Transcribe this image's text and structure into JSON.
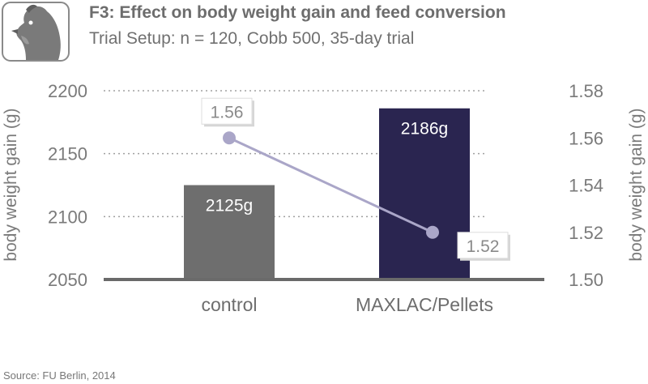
{
  "header": {
    "title": "F3:  Effect on body weight gain and feed conversion",
    "subtitle": "Trial Setup: n = 120, Cobb 500, 35-day trial",
    "logo_icon": "chicken-head-icon"
  },
  "footer": {
    "source": "Source: FU Berlin, 2014"
  },
  "colors": {
    "control_bar": "#6e6e6e",
    "maxlac_bar": "#2a2550",
    "line": "#aaa6c8",
    "axis": "#6a6a6a",
    "text": "#777777"
  },
  "chart_data": {
    "type": "bar",
    "categories": [
      "control",
      "MAXLAC/Pellets"
    ],
    "series": [
      {
        "type": "bar",
        "axis": "left",
        "values": [
          2125,
          2186
        ],
        "data_labels": [
          "2125g",
          "2186g"
        ]
      },
      {
        "type": "line",
        "axis": "right",
        "values": [
          1.56,
          1.52
        ],
        "data_labels": [
          "1.56",
          "1.52"
        ]
      }
    ],
    "ylabel": "body weight gain (g)",
    "ylabel_right": "body weight gain (g)",
    "ylim": [
      2050,
      2200
    ],
    "yticks": [
      "2050",
      "2100",
      "2150",
      "2200"
    ],
    "ylim_right": [
      1.5,
      1.58
    ],
    "yticks_right": [
      "1.50",
      "1.52",
      "1.54",
      "1.56",
      "1.58"
    ],
    "grid": "dotted horizontal"
  }
}
